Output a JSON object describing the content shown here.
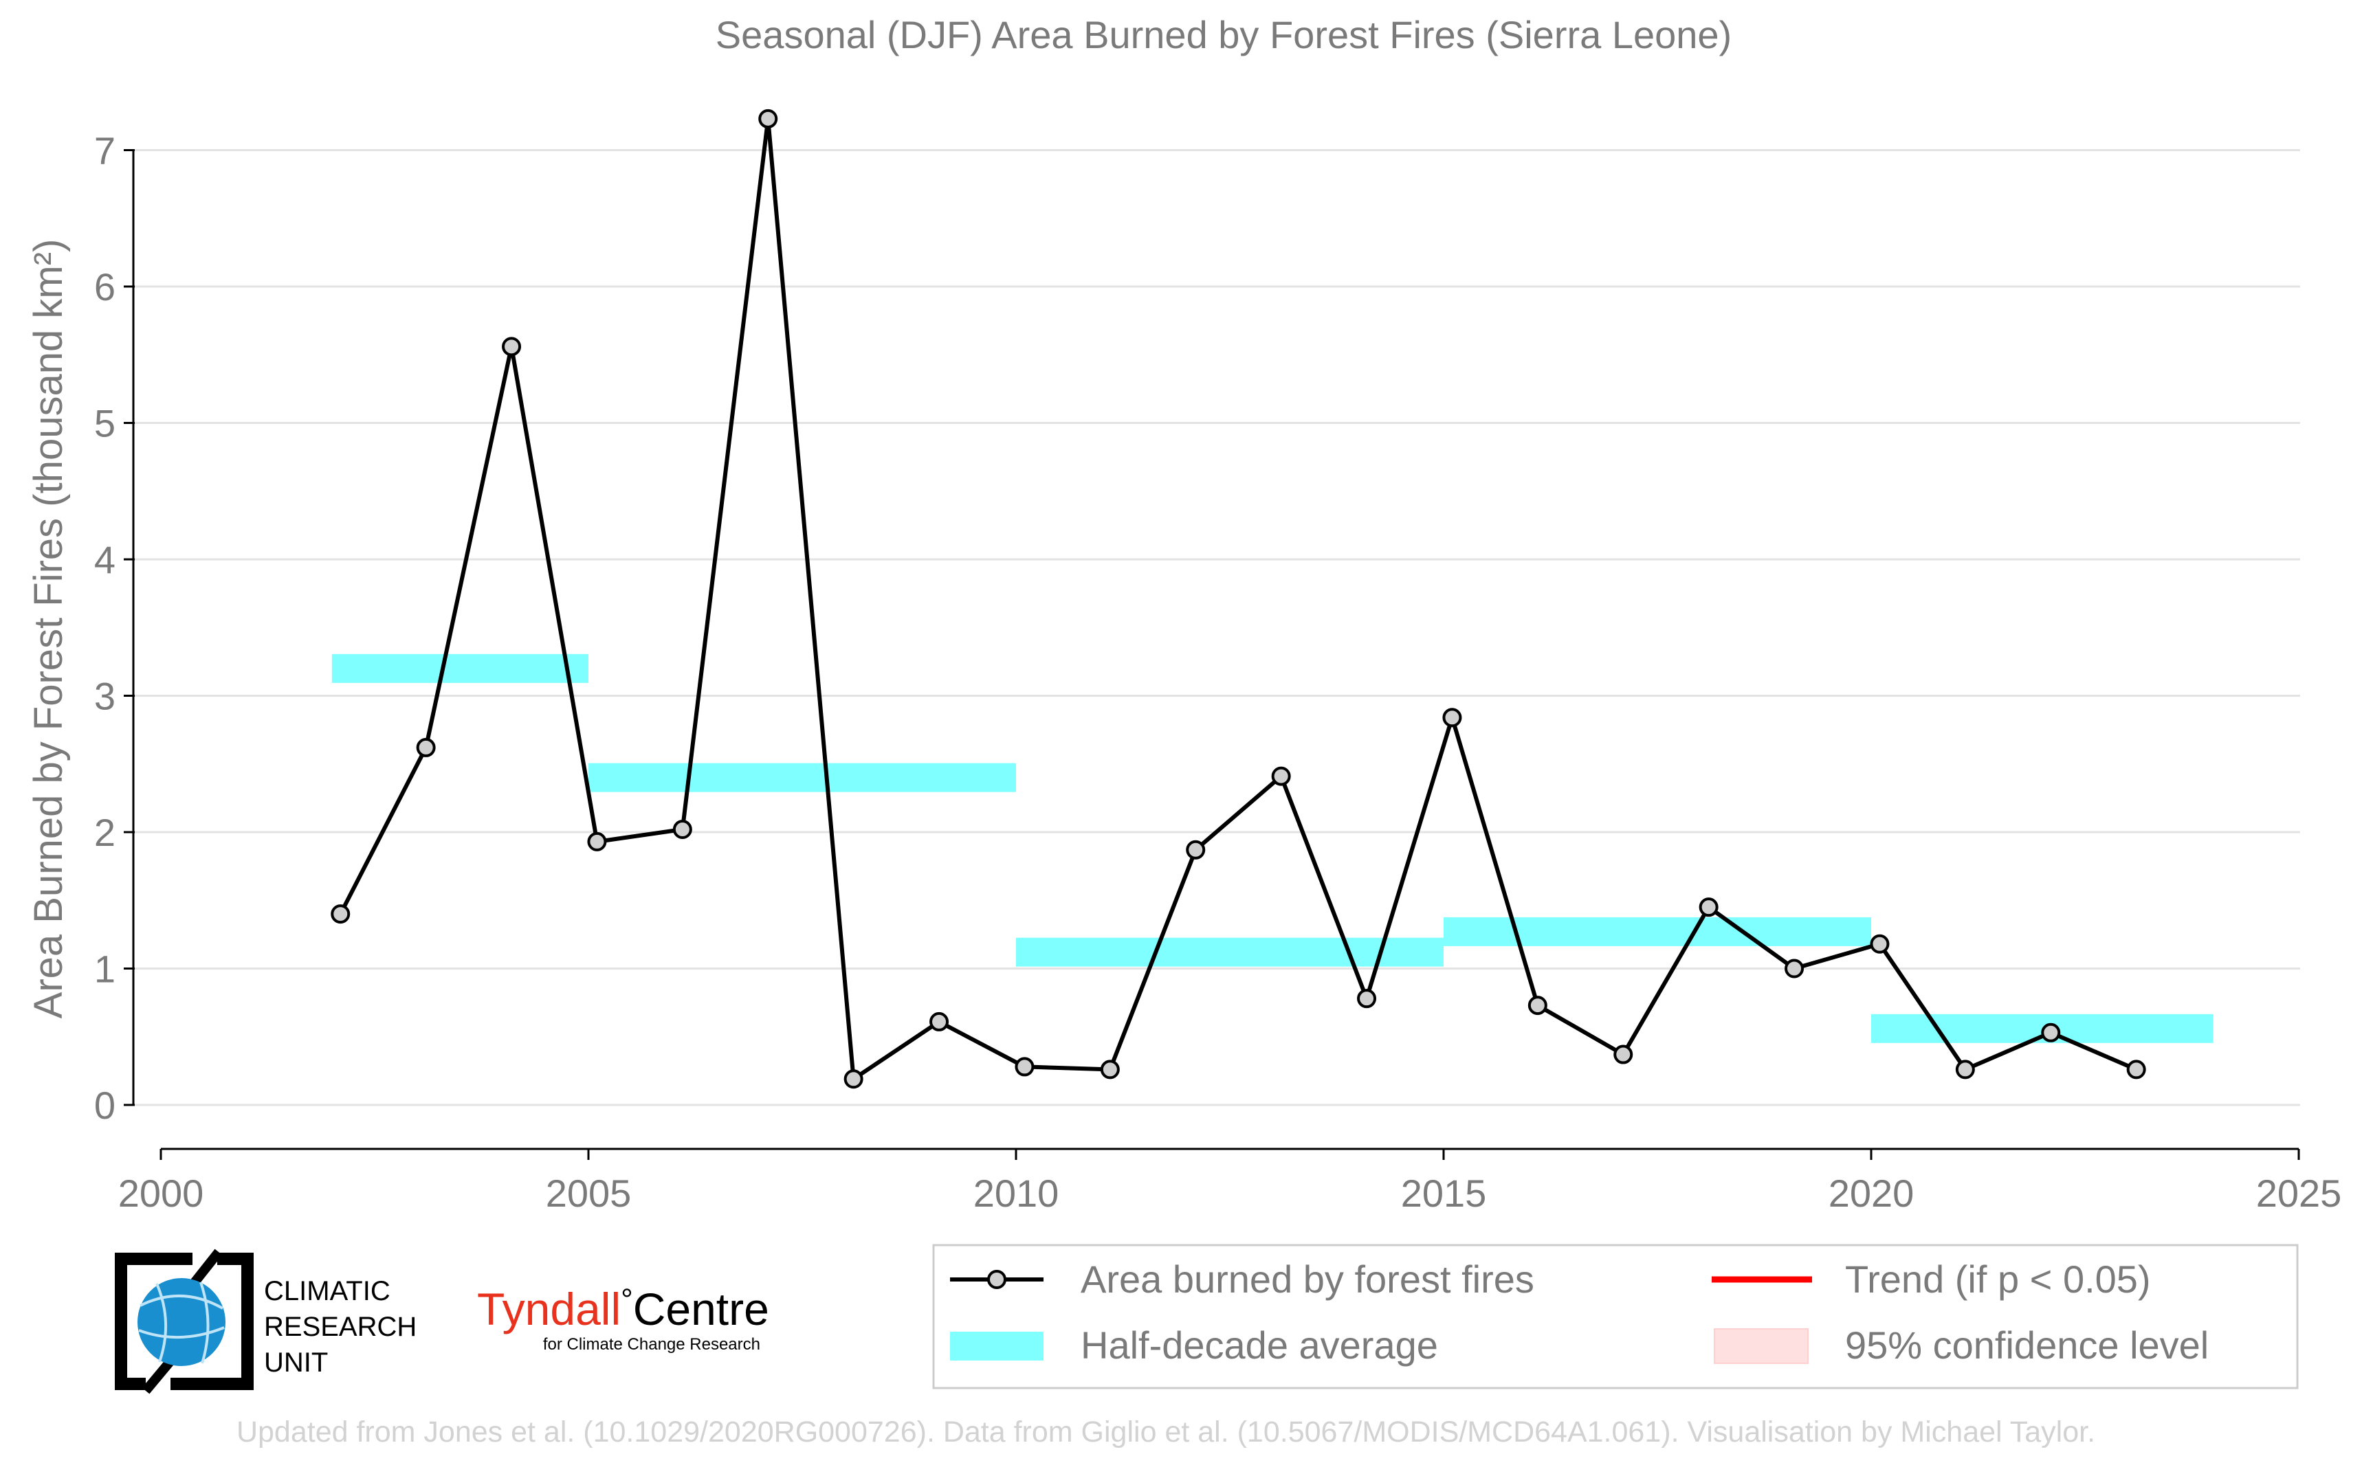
{
  "chart_data": {
    "type": "line",
    "title": "Seasonal (DJF) Area Burned by Forest Fires (Sierra Leone)",
    "ylabel": "Area Burned by Forest Fires (thousand km²)",
    "xlabel": "",
    "xlim": [
      2000,
      2025
    ],
    "ylim": [
      -0.35,
      7.25
    ],
    "x_ticks": [
      2000,
      2005,
      2010,
      2015,
      2020,
      2025
    ],
    "y_ticks": [
      0,
      1,
      2,
      3,
      4,
      5,
      6,
      7
    ],
    "grid": "horizontal",
    "series": [
      {
        "name": "Area burned by forest fires",
        "color": "#000000",
        "marker_fill": "#d0d0d0",
        "x": [
          2002.1,
          2003.1,
          2004.1,
          2005.1,
          2006.1,
          2007.1,
          2008.1,
          2009.1,
          2010.1,
          2011.1,
          2012.1,
          2013.1,
          2014.1,
          2015.1,
          2016.1,
          2017.1,
          2018.1,
          2019.1,
          2020.1,
          2021.1,
          2022.1,
          2023.1
        ],
        "values": [
          1.4,
          2.62,
          5.56,
          1.93,
          2.02,
          7.23,
          0.19,
          0.61,
          0.28,
          0.26,
          1.87,
          2.41,
          0.78,
          2.84,
          0.73,
          0.37,
          1.45,
          1.0,
          1.18,
          0.26,
          0.53,
          0.26
        ]
      }
    ],
    "half_decade_average": {
      "name": "Half-decade average",
      "color": "#7fffff",
      "segments": [
        {
          "start": 2002,
          "end": 2005,
          "value": 3.2
        },
        {
          "start": 2005,
          "end": 2010,
          "value": 2.4
        },
        {
          "start": 2010,
          "end": 2015,
          "value": 1.12
        },
        {
          "start": 2015,
          "end": 2020,
          "value": 1.27
        },
        {
          "start": 2020,
          "end": 2024,
          "value": 0.56
        }
      ]
    },
    "legend": {
      "placement": "bottom-right",
      "entries": [
        {
          "label": "Area burned by forest fires",
          "kind": "line-marker",
          "color": "#000000"
        },
        {
          "label": "Trend (if p < 0.05)",
          "kind": "line",
          "color": "#ff0000"
        },
        {
          "label": "Half-decade average",
          "kind": "band",
          "color": "#7fffff"
        },
        {
          "label": "95% confidence level",
          "kind": "band",
          "color": "#ffe0e0"
        }
      ]
    }
  },
  "logos": {
    "cru": [
      "CLIMATIC",
      "RESEARCH",
      "UNIT"
    ],
    "tyndall_name": "Tyndall",
    "tyndall_centre": "Centre",
    "tyndall_degree": "°",
    "tyndall_sub": "for Climate Change Research",
    "tyndall_color": "#e8321e",
    "cru_globe_color": "#1a8fd0"
  },
  "footer": "Updated from Jones et al. (10.1029/2020RG000726). Data from Giglio et al. (10.5067/MODIS/MCD64A1.061). Visualisation by Michael Taylor."
}
